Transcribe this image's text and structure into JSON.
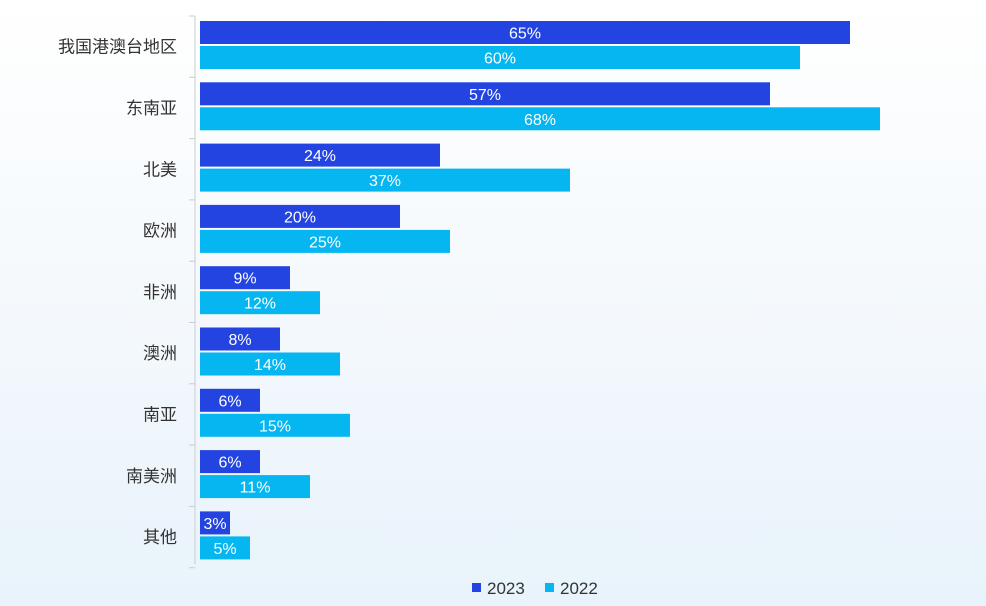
{
  "chart_data": {
    "type": "bar",
    "orientation": "horizontal",
    "categories": [
      "我国港澳台地区",
      "东南亚",
      "北美",
      "欧洲",
      "非洲",
      "澳洲",
      "南亚",
      "南美洲",
      "其他"
    ],
    "series": [
      {
        "name": "2023",
        "color": "#2344e0",
        "values": [
          65,
          57,
          24,
          20,
          9,
          8,
          6,
          6,
          3
        ]
      },
      {
        "name": "2022",
        "color": "#05b6f0",
        "values": [
          60,
          68,
          37,
          25,
          12,
          14,
          15,
          11,
          5
        ]
      }
    ],
    "value_suffix": "%",
    "xlim": [
      0,
      70
    ],
    "grid": false,
    "legend_position": "bottom"
  }
}
